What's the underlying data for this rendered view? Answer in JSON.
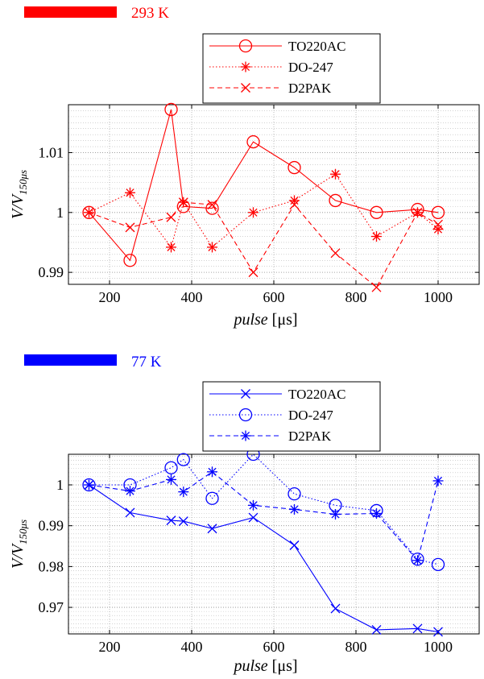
{
  "chart_data": [
    {
      "type": "line",
      "header_label": "293 K",
      "header_color": "#ff0000",
      "color": "#ff0000",
      "xlabel": "pulse [μs]",
      "ylabel": "V/V150μs",
      "xlim": [
        100,
        1100
      ],
      "ylim": [
        0.988,
        1.018
      ],
      "xticks": [
        200,
        400,
        600,
        800,
        1000
      ],
      "yticks": [
        0.99,
        1,
        1.01
      ],
      "ytick_labels": [
        "0.99",
        "1",
        "1.01"
      ],
      "minor_grid_step": 0.001,
      "grid": true,
      "legend_position": "top-center",
      "series": [
        {
          "name": "TO220AC",
          "line": "solid",
          "marker": "circle",
          "x": [
            150,
            250,
            350,
            380,
            450,
            550,
            650,
            750,
            850,
            950,
            1000
          ],
          "y": [
            1.0,
            0.992,
            1.0172,
            1.001,
            1.0007,
            1.0118,
            1.0075,
            1.002,
            1.0,
            1.0005,
            1.0
          ]
        },
        {
          "name": "DO-247",
          "line": "dotted",
          "marker": "asterisk",
          "x": [
            150,
            250,
            350,
            380,
            450,
            550,
            650,
            750,
            850,
            950,
            1000
          ],
          "y": [
            1.0,
            1.0033,
            0.9942,
            1.0017,
            0.9942,
            1.0,
            1.002,
            1.0064,
            0.996,
            1.0,
            0.9972
          ]
        },
        {
          "name": "D2PAK",
          "line": "dashed",
          "marker": "x",
          "x": [
            150,
            250,
            350,
            380,
            450,
            550,
            650,
            750,
            850,
            950,
            1000
          ],
          "y": [
            1.0,
            0.9975,
            0.9992,
            1.0017,
            1.0013,
            0.99,
            1.0013,
            0.9932,
            0.9875,
            1.0,
            0.998
          ]
        }
      ]
    },
    {
      "type": "line",
      "header_label": "77 K",
      "header_color": "#0000ff",
      "color": "#0000ff",
      "xlabel": "pulse [μs]",
      "ylabel": "V/V150μs",
      "xlim": [
        100,
        1100
      ],
      "ylim": [
        0.9635,
        1.0075
      ],
      "xticks": [
        200,
        400,
        600,
        800,
        1000
      ],
      "yticks": [
        0.97,
        0.98,
        0.99,
        1
      ],
      "ytick_labels": [
        "0.97",
        "0.98",
        "0.99",
        "1"
      ],
      "minor_grid_step": 0.001,
      "grid": true,
      "legend_position": "top-center",
      "series": [
        {
          "name": "TO220AC",
          "line": "solid",
          "marker": "x",
          "x": [
            150,
            250,
            350,
            380,
            450,
            550,
            650,
            750,
            850,
            950,
            1000
          ],
          "y": [
            1.0,
            0.9932,
            0.9913,
            0.9911,
            0.9893,
            0.992,
            0.9852,
            0.9697,
            0.9645,
            0.9648,
            0.964
          ]
        },
        {
          "name": "DO-247",
          "line": "dotted",
          "marker": "circle",
          "x": [
            150,
            250,
            350,
            380,
            450,
            550,
            650,
            750,
            850,
            950,
            1000
          ],
          "y": [
            1.0,
            1.0,
            1.0042,
            1.0062,
            0.9967,
            1.0075,
            0.9978,
            0.995,
            0.9937,
            0.9818,
            0.9805
          ]
        },
        {
          "name": "D2PAK",
          "line": "dashed",
          "marker": "asterisk",
          "x": [
            150,
            250,
            350,
            380,
            450,
            550,
            650,
            750,
            850,
            950,
            1000
          ],
          "y": [
            1.0,
            0.9985,
            1.0013,
            0.9983,
            1.0032,
            0.995,
            0.994,
            0.9928,
            0.993,
            0.9815,
            1.001
          ]
        }
      ]
    }
  ]
}
